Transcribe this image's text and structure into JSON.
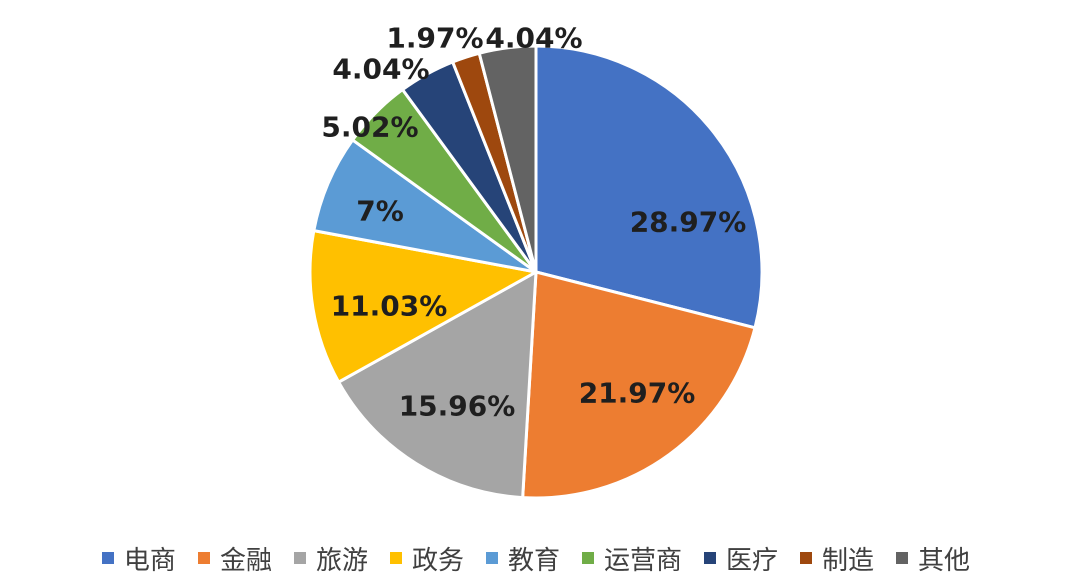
{
  "chart_data": {
    "type": "pie",
    "categories": [
      "电商",
      "金融",
      "旅游",
      "政务",
      "教育",
      "运营商",
      "医疗",
      "制造",
      "其他"
    ],
    "values": [
      28.97,
      21.97,
      15.96,
      11.03,
      7.0,
      5.02,
      4.04,
      1.97,
      4.04
    ],
    "labels": [
      "28.97%",
      "21.97%",
      "15.96%",
      "11.03%",
      "7%",
      "5.02%",
      "4.04%",
      "1.97%",
      "4.04%"
    ],
    "colors": [
      "#4472c4",
      "#ed7d31",
      "#a5a5a5",
      "#ffc000",
      "#5b9bd5",
      "#70ad47",
      "#264478",
      "#9e480e",
      "#636363"
    ],
    "start_angle_deg": 0,
    "direction": "clockwise",
    "legend_position": "bottom"
  }
}
